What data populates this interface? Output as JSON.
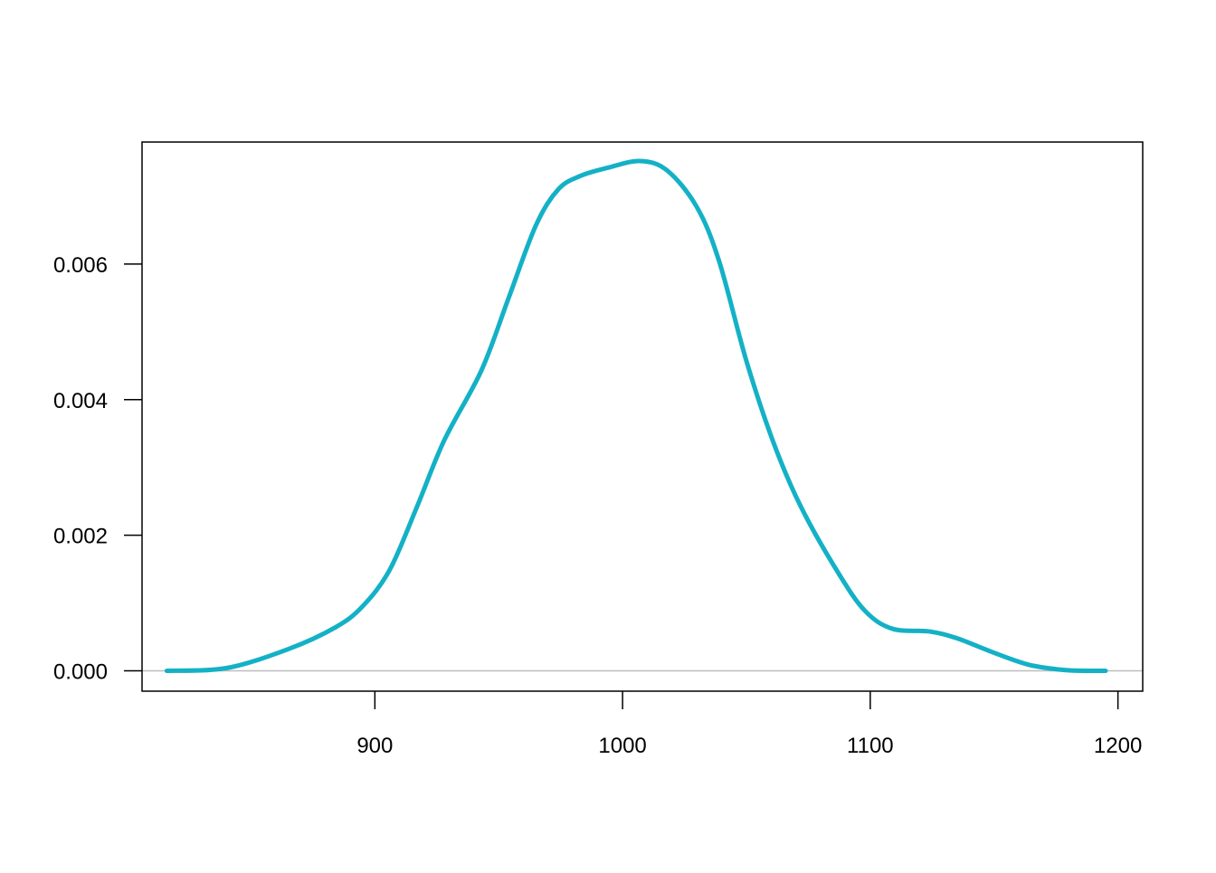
{
  "chart_data": {
    "type": "line",
    "title": "",
    "xlabel": "",
    "ylabel": "",
    "xlim": [
      806,
      1210
    ],
    "ylim": [
      -0.0003,
      0.0078
    ],
    "grid": false,
    "line_color": "#14b1c6",
    "baseline_color": "#bebebe",
    "x_ticks": [
      900,
      1000,
      1100,
      1200
    ],
    "x_tick_labels": [
      "900",
      "1000",
      "1100",
      "1200"
    ],
    "y_ticks": [
      0,
      0.002,
      0.004,
      0.006
    ],
    "y_tick_labels": [
      "0.000",
      "0.002",
      "0.004",
      "0.006"
    ],
    "series": [
      {
        "x": [
          816,
          840,
          865,
          884,
          895,
          906,
          917,
          928,
          943,
          954,
          965,
          974,
          983,
          994,
          1007,
          1018,
          1030,
          1039,
          1050,
          1061,
          1072,
          1087,
          1098,
          1109,
          1124,
          1135,
          1149,
          1164,
          1179,
          1195
        ],
        "y": [
          0.0,
          4e-05,
          0.00032,
          0.00064,
          0.00095,
          0.00149,
          0.00242,
          0.0034,
          0.00443,
          0.0055,
          0.00657,
          0.0071,
          0.0073,
          0.00742,
          0.00752,
          0.00738,
          0.00684,
          0.00604,
          0.00457,
          0.00336,
          0.00242,
          0.00145,
          0.00088,
          0.00062,
          0.00058,
          0.00048,
          0.00028,
          9e-05,
          1e-05,
          0.0
        ]
      }
    ]
  }
}
